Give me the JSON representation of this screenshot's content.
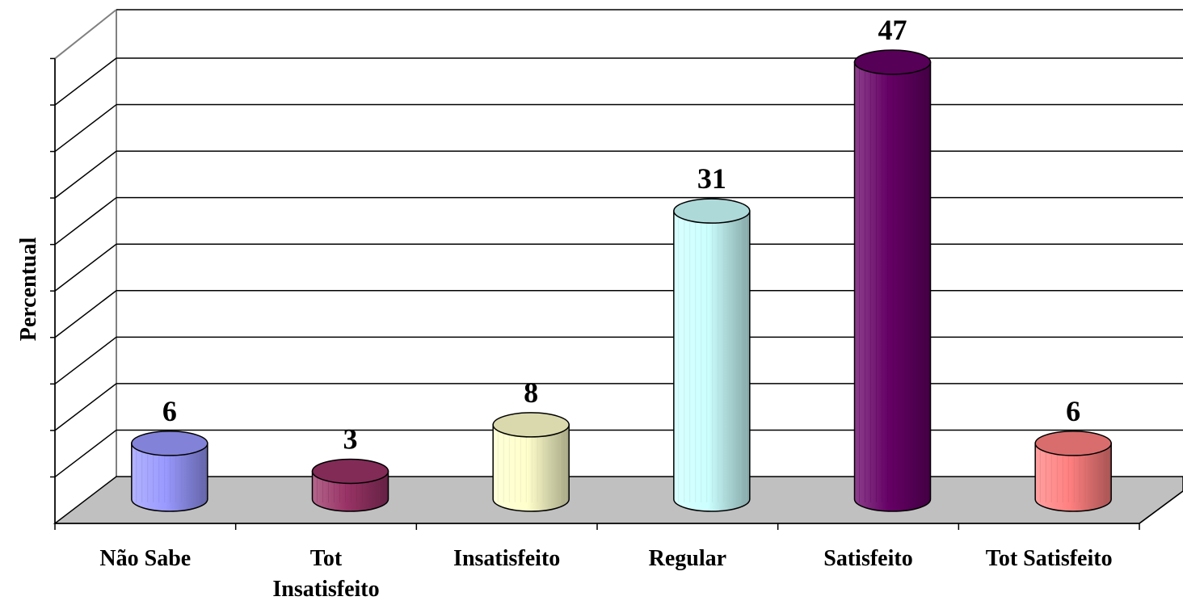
{
  "chart_data": {
    "type": "bar",
    "title": "",
    "xlabel": "",
    "ylabel": "Percentual",
    "categories": [
      "Não Sabe",
      "Tot Insatisfeito",
      "Insatisfeito",
      "Regular",
      "Satisfeito",
      "Tot Satisfeito"
    ],
    "category_lines": [
      [
        "Não Sabe"
      ],
      [
        "Tot",
        "Insatisfeito"
      ],
      [
        "Insatisfeito"
      ],
      [
        "Regular"
      ],
      [
        "Satisfeito"
      ],
      [
        "Tot Satisfeito"
      ]
    ],
    "values": [
      6,
      3,
      8,
      31,
      47,
      6
    ],
    "ylim": [
      0,
      50
    ],
    "grid": true,
    "legend": "none",
    "style": "3d-cylinder",
    "colors": [
      "#9999ff",
      "#993366",
      "#ffffcc",
      "#ccffff",
      "#660066",
      "#ff8080"
    ],
    "floor_color": "#c0c0c0"
  }
}
